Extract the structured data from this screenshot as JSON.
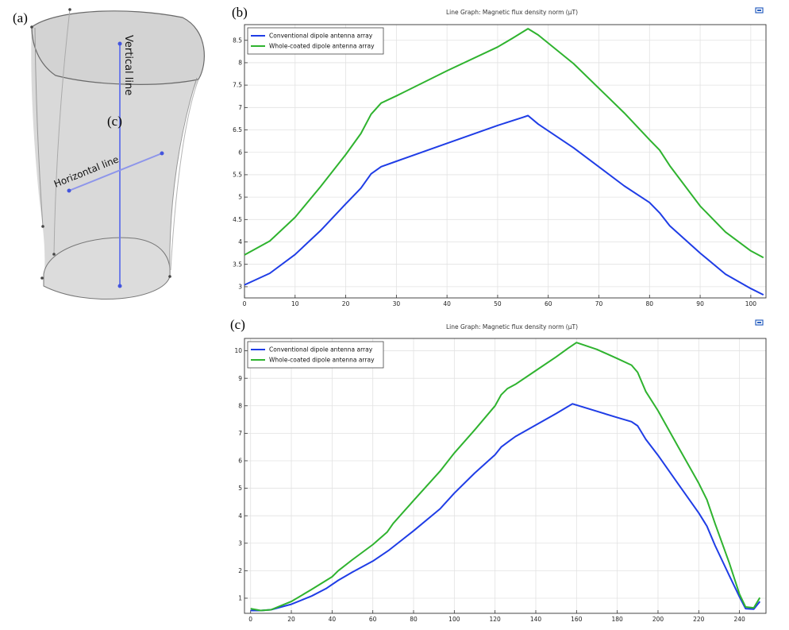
{
  "labels": {
    "a": "(a)",
    "b": "(b)",
    "c": "(c)",
    "c_marker": "(c)"
  },
  "geometry_labels": {
    "vertical": "Vertical line",
    "horizontal": "Horizontal line"
  },
  "chart_data": [
    {
      "id": "b",
      "type": "line",
      "title": "Line Graph: Magnetic flux density norm (µT)",
      "xlim": [
        0,
        103
      ],
      "ylim": [
        2.75,
        8.85
      ],
      "xticks": [
        0,
        10,
        20,
        30,
        40,
        50,
        60,
        70,
        80,
        90,
        100
      ],
      "yticks": [
        3,
        3.5,
        4,
        4.5,
        5,
        5.5,
        6,
        6.5,
        7,
        7.5,
        8,
        8.5
      ],
      "ytick_labels": [
        "3",
        "3.5",
        "4",
        "4.5",
        "5",
        "5.5",
        "6",
        "6.5",
        "7",
        "7.5",
        "8",
        "8.5"
      ],
      "grid": true,
      "legend": "top-left",
      "series": [
        {
          "name": "Conventional dipole antenna array",
          "color": "#1f3de6",
          "x": [
            0,
            5,
            10,
            15,
            20,
            23,
            25,
            27,
            30,
            40,
            50,
            55,
            56,
            58,
            65,
            75,
            80,
            82,
            84,
            90,
            95,
            100,
            102.5
          ],
          "y": [
            3.04,
            3.3,
            3.72,
            4.25,
            4.85,
            5.2,
            5.52,
            5.68,
            5.8,
            6.2,
            6.6,
            6.78,
            6.82,
            6.63,
            6.1,
            5.25,
            4.88,
            4.65,
            4.36,
            3.75,
            3.28,
            2.96,
            2.82
          ]
        },
        {
          "name": "Whole-coated dipole antenna array",
          "color": "#2fb32f",
          "x": [
            0,
            5,
            10,
            15,
            20,
            23,
            25,
            27,
            30,
            40,
            50,
            53,
            56,
            58,
            65,
            75,
            80,
            82,
            84,
            90,
            95,
            100,
            102.5
          ],
          "y": [
            3.71,
            4.02,
            4.55,
            5.23,
            5.95,
            6.42,
            6.85,
            7.1,
            7.26,
            7.82,
            8.35,
            8.55,
            8.76,
            8.62,
            7.98,
            6.88,
            6.28,
            6.05,
            5.7,
            4.8,
            4.22,
            3.8,
            3.65
          ]
        }
      ]
    },
    {
      "id": "c",
      "type": "line",
      "title": "Line Graph: Magnetic flux density norm (µT)",
      "xlim": [
        -3,
        253
      ],
      "ylim": [
        0.45,
        10.45
      ],
      "xticks": [
        0,
        20,
        40,
        60,
        80,
        100,
        120,
        140,
        160,
        180,
        200,
        220,
        240
      ],
      "yticks": [
        1,
        2,
        3,
        4,
        5,
        6,
        7,
        8,
        9,
        10
      ],
      "ytick_labels": [
        "1",
        "2",
        "3",
        "4",
        "5",
        "6",
        "7",
        "8",
        "9",
        "10"
      ],
      "grid": true,
      "legend": "top-left",
      "series": [
        {
          "name": "Conventional dipole antenna array",
          "color": "#1f3de6",
          "x": [
            0,
            5,
            10,
            20,
            30,
            37,
            43,
            50,
            60,
            68,
            80,
            93,
            100,
            110,
            120,
            123,
            127,
            130,
            140,
            150,
            158,
            170,
            180,
            187,
            190,
            194,
            200,
            210,
            220,
            224,
            228,
            235,
            240,
            243,
            247,
            250
          ],
          "y": [
            0.55,
            0.55,
            0.58,
            0.78,
            1.08,
            1.35,
            1.65,
            1.95,
            2.35,
            2.75,
            3.45,
            4.25,
            4.82,
            5.55,
            6.22,
            6.5,
            6.72,
            6.88,
            7.3,
            7.72,
            8.07,
            7.8,
            7.57,
            7.42,
            7.27,
            6.78,
            6.2,
            5.15,
            4.1,
            3.62,
            2.92,
            1.82,
            1.05,
            0.62,
            0.6,
            0.88
          ]
        },
        {
          "name": "Whole-coated dipole antenna array",
          "color": "#2fb32f",
          "x": [
            0,
            5,
            10,
            20,
            30,
            40,
            43,
            50,
            60,
            67,
            70,
            80,
            93,
            100,
            110,
            120,
            123,
            126,
            130,
            140,
            150,
            156,
            160,
            170,
            180,
            187,
            190,
            194,
            200,
            210,
            220,
            224,
            228,
            235,
            240,
            243,
            247,
            250
          ],
          "y": [
            0.62,
            0.55,
            0.58,
            0.88,
            1.32,
            1.78,
            2.0,
            2.4,
            2.95,
            3.4,
            3.72,
            4.55,
            5.62,
            6.28,
            7.12,
            8.0,
            8.4,
            8.62,
            8.78,
            9.28,
            9.78,
            10.1,
            10.3,
            10.05,
            9.72,
            9.48,
            9.22,
            8.52,
            7.82,
            6.5,
            5.18,
            4.58,
            3.72,
            2.28,
            1.15,
            0.68,
            0.65,
            1.02
          ]
        }
      ]
    }
  ]
}
